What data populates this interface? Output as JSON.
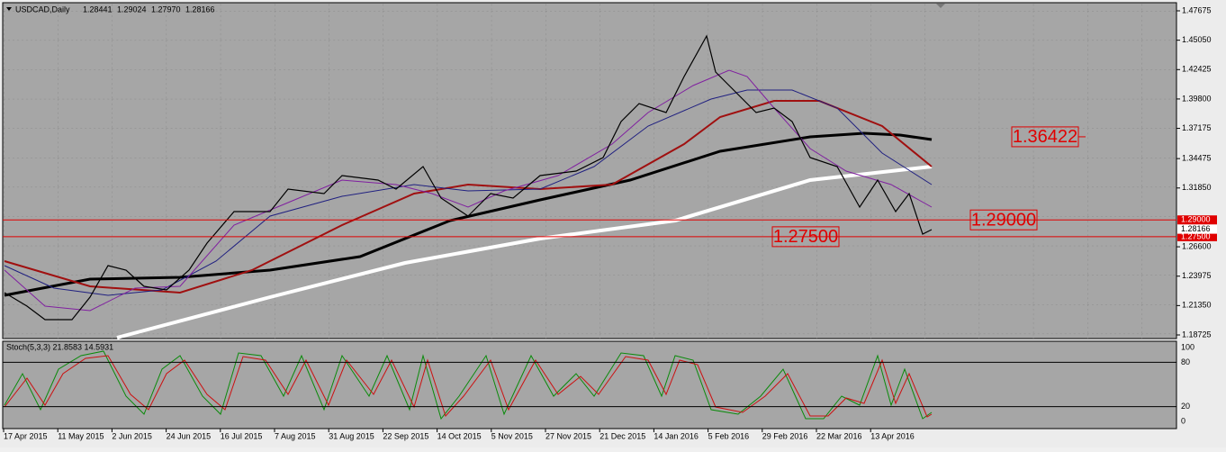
{
  "header": {
    "symbol": "USDCAD,Daily",
    "quote": [
      "1.28441",
      "1.29024",
      "1.27970",
      "1.28166"
    ]
  },
  "price_axis": {
    "range": [
      1.18725,
      1.47675
    ],
    "ticks": [
      {
        "value": 1.47675,
        "label": "1.47675"
      },
      {
        "value": 1.4505,
        "label": "1.45050"
      },
      {
        "value": 1.42425,
        "label": "1.42425"
      },
      {
        "value": 1.398,
        "label": "1.39800"
      },
      {
        "value": 1.37175,
        "label": "1.37175"
      },
      {
        "value": 1.34475,
        "label": "1.34475"
      },
      {
        "value": 1.3185,
        "label": "1.31850"
      },
      {
        "value": 1.266,
        "label": "1.26600"
      },
      {
        "value": 1.23975,
        "label": "1.23975"
      },
      {
        "value": 1.2135,
        "label": "1.21350"
      },
      {
        "value": 1.18725,
        "label": "1.18725"
      }
    ]
  },
  "levels": [
    {
      "value": 1.29,
      "label": "1.29000"
    },
    {
      "value": 1.275,
      "label": "1.27500"
    }
  ],
  "current_price": {
    "value": 1.28166,
    "label": "1.28166"
  },
  "annotations": [
    {
      "value": 1.36422,
      "label": "1.36422"
    },
    {
      "value": 1.29,
      "label": "1.29000"
    },
    {
      "value": 1.275,
      "label": "1.27500"
    }
  ],
  "stochastic": {
    "title": "Stoch(5,3,3) 21.8583 14.5931",
    "range": [
      0,
      100
    ],
    "ticks": [
      100,
      80,
      20,
      0
    ]
  },
  "dates": [
    "17 Apr 2015",
    "11 May 2015",
    "2 Jun 2015",
    "24 Jun 2015",
    "16 Jul 2015",
    "7 Aug 2015",
    "31 Aug 2015",
    "22 Sep 2015",
    "14 Oct 2015",
    "5 Nov 2015",
    "27 Nov 2015",
    "21 Dec 2015",
    "14 Jan 2016",
    "5 Feb 2016",
    "29 Feb 2016",
    "22 Mar 2016",
    "13 Apr 2016"
  ]
}
